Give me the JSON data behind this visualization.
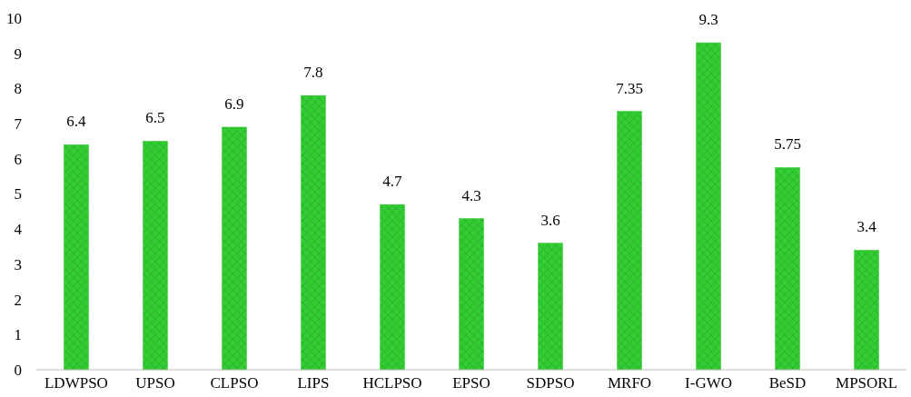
{
  "chart_data": {
    "type": "bar",
    "categories": [
      "LDWPSO",
      "UPSO",
      "CLPSO",
      "LIPS",
      "HCLPSO",
      "EPSO",
      "SDPSO",
      "MRFO",
      "I-GWO",
      "BeSD",
      "MPSORL"
    ],
    "values": [
      6.4,
      6.5,
      6.9,
      7.8,
      4.7,
      4.3,
      3.6,
      7.35,
      9.3,
      5.75,
      3.4
    ],
    "color": "#33cc33",
    "ylim": [
      0,
      10
    ],
    "yticks": [
      0,
      1,
      2,
      3,
      4,
      5,
      6,
      7,
      8,
      9,
      10
    ],
    "data_labels": true,
    "grid": false
  }
}
